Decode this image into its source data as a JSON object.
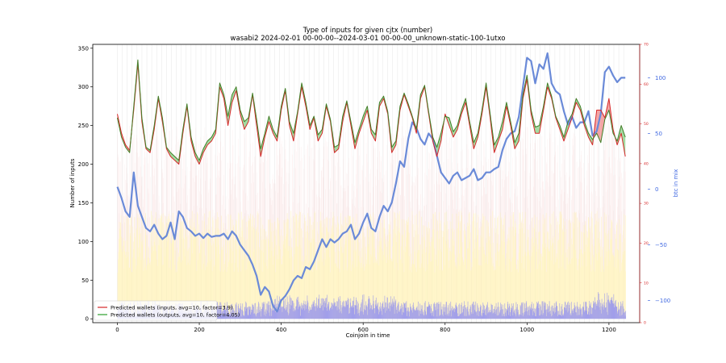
{
  "chart_data": {
    "type": "line",
    "title": "Type of inputs for given cjtx (number)",
    "subtitle": "wasabi2 2024-02-01 00-00-00--2024-03-01 00-00-00_unknown-static-100-1utxo",
    "xlabel": "Coinjoin in time",
    "ylabel": "Number of inputs",
    "y2label": "btc in mix",
    "xlim": [
      -60,
      1275
    ],
    "ylim": [
      -5,
      355
    ],
    "y3lim": [
      0,
      70
    ],
    "y2lim": [
      -120,
      130
    ],
    "x_ticks": [
      "0",
      "200",
      "400",
      "600",
      "800",
      "1000",
      "1200"
    ],
    "y_ticks": [
      "0",
      "50",
      "100",
      "150",
      "200",
      "250",
      "300",
      "350"
    ],
    "y3_ticks": [
      "0",
      "10",
      "20",
      "30",
      "40",
      "50",
      "60",
      "70"
    ],
    "y2_ticks": [
      "−100",
      "−50",
      "0",
      "50",
      "100"
    ],
    "legend": [
      {
        "label": "Predicted wallets (inputs, avg=10, factor=3.9)",
        "color": "#d62728"
      },
      {
        "label": "Predicted wallets (outputs, avg=10, factor=4.05)",
        "color": "#2ca02c"
      }
    ],
    "series": [
      {
        "name": "Predicted wallets (inputs, avg=10, factor=3.9)",
        "color": "#d62728",
        "x": [
          0,
          10,
          20,
          30,
          40,
          50,
          60,
          70,
          80,
          90,
          100,
          110,
          120,
          130,
          140,
          150,
          160,
          170,
          180,
          190,
          200,
          210,
          220,
          230,
          240,
          250,
          260,
          270,
          280,
          290,
          300,
          310,
          320,
          330,
          340,
          350,
          360,
          370,
          380,
          390,
          400,
          410,
          420,
          430,
          440,
          450,
          460,
          470,
          480,
          490,
          500,
          510,
          520,
          530,
          540,
          550,
          560,
          570,
          580,
          590,
          600,
          610,
          620,
          630,
          640,
          650,
          660,
          670,
          680,
          690,
          700,
          710,
          720,
          730,
          740,
          750,
          760,
          770,
          780,
          790,
          800,
          810,
          820,
          830,
          840,
          850,
          860,
          870,
          880,
          890,
          900,
          910,
          920,
          930,
          940,
          950,
          960,
          970,
          980,
          990,
          1000,
          1010,
          1020,
          1030,
          1040,
          1050,
          1060,
          1070,
          1080,
          1090,
          1100,
          1110,
          1120,
          1130,
          1140,
          1150,
          1160,
          1170,
          1180,
          1190,
          1200,
          1210,
          1220,
          1230,
          1240
        ],
        "values": [
          265,
          240,
          225,
          218,
          270,
          330,
          255,
          220,
          215,
          245,
          285,
          255,
          220,
          210,
          205,
          200,
          240,
          275,
          230,
          210,
          200,
          215,
          225,
          230,
          240,
          300,
          285,
          250,
          280,
          295,
          265,
          245,
          255,
          290,
          250,
          210,
          235,
          255,
          240,
          230,
          270,
          295,
          250,
          230,
          265,
          300,
          275,
          245,
          260,
          230,
          240,
          275,
          255,
          215,
          220,
          255,
          280,
          250,
          220,
          240,
          255,
          270,
          240,
          230,
          275,
          285,
          265,
          215,
          225,
          270,
          290,
          275,
          260,
          240,
          285,
          300,
          265,
          230,
          210,
          230,
          265,
          250,
          235,
          245,
          265,
          280,
          250,
          220,
          235,
          265,
          300,
          260,
          215,
          230,
          245,
          275,
          250,
          220,
          230,
          285,
          310,
          265,
          240,
          240,
          270,
          300,
          285,
          260,
          245,
          230,
          245,
          260,
          280,
          270,
          250,
          235,
          225,
          270,
          270,
          260,
          285,
          245,
          225,
          240,
          210
        ]
      },
      {
        "name": "Predicted wallets (outputs, avg=10, factor=4.05)",
        "color": "#2ca02c",
        "x": [
          0,
          10,
          20,
          30,
          40,
          50,
          60,
          70,
          80,
          90,
          100,
          110,
          120,
          130,
          140,
          150,
          160,
          170,
          180,
          190,
          200,
          210,
          220,
          230,
          240,
          250,
          260,
          270,
          280,
          290,
          300,
          310,
          320,
          330,
          340,
          350,
          360,
          370,
          380,
          390,
          400,
          410,
          420,
          430,
          440,
          450,
          460,
          470,
          480,
          490,
          500,
          510,
          520,
          530,
          540,
          550,
          560,
          570,
          580,
          590,
          600,
          610,
          620,
          630,
          640,
          650,
          660,
          670,
          680,
          690,
          700,
          710,
          720,
          730,
          740,
          750,
          760,
          770,
          780,
          790,
          800,
          810,
          820,
          830,
          840,
          850,
          860,
          870,
          880,
          890,
          900,
          910,
          920,
          930,
          940,
          950,
          960,
          970,
          980,
          990,
          1000,
          1010,
          1020,
          1030,
          1040,
          1050,
          1060,
          1070,
          1080,
          1090,
          1100,
          1110,
          1120,
          1130,
          1140,
          1150,
          1160,
          1170,
          1180,
          1190,
          1200,
          1210,
          1220,
          1230,
          1240
        ],
        "values": [
          260,
          235,
          222,
          215,
          275,
          335,
          260,
          222,
          218,
          250,
          288,
          260,
          222,
          215,
          210,
          205,
          245,
          278,
          235,
          215,
          205,
          220,
          230,
          235,
          245,
          305,
          290,
          262,
          290,
          300,
          270,
          255,
          260,
          292,
          258,
          220,
          240,
          262,
          245,
          235,
          275,
          298,
          255,
          240,
          268,
          305,
          280,
          250,
          262,
          238,
          245,
          278,
          258,
          222,
          225,
          262,
          282,
          255,
          228,
          245,
          262,
          275,
          245,
          238,
          280,
          288,
          268,
          222,
          230,
          275,
          292,
          278,
          262,
          245,
          290,
          302,
          268,
          235,
          222,
          240,
          262,
          260,
          242,
          250,
          270,
          285,
          255,
          228,
          240,
          270,
          305,
          265,
          225,
          235,
          255,
          280,
          255,
          228,
          240,
          290,
          315,
          270,
          248,
          250,
          275,
          305,
          288,
          262,
          250,
          235,
          255,
          265,
          285,
          275,
          255,
          240,
          232,
          240,
          228,
          258,
          270,
          240,
          230,
          250,
          235
        ]
      },
      {
        "name": "btc in mix",
        "color": "#6a8ad8",
        "axis": "y2",
        "x": [
          0,
          10,
          20,
          30,
          40,
          50,
          60,
          70,
          80,
          90,
          100,
          110,
          120,
          130,
          140,
          150,
          160,
          170,
          180,
          190,
          200,
          210,
          220,
          230,
          240,
          250,
          260,
          270,
          280,
          290,
          300,
          310,
          320,
          330,
          340,
          350,
          360,
          370,
          380,
          390,
          400,
          410,
          420,
          430,
          440,
          450,
          460,
          470,
          480,
          490,
          500,
          510,
          520,
          530,
          540,
          550,
          560,
          570,
          580,
          590,
          600,
          610,
          620,
          630,
          640,
          650,
          660,
          670,
          680,
          690,
          700,
          710,
          720,
          730,
          740,
          750,
          760,
          770,
          780,
          790,
          800,
          810,
          820,
          830,
          840,
          850,
          860,
          870,
          880,
          890,
          900,
          910,
          920,
          930,
          940,
          950,
          960,
          970,
          980,
          990,
          1000,
          1010,
          1020,
          1030,
          1040,
          1050,
          1060,
          1070,
          1080,
          1090,
          1100,
          1110,
          1120,
          1130,
          1140,
          1150,
          1160,
          1170,
          1180,
          1190,
          1200,
          1210,
          1220,
          1230,
          1240
        ],
        "values": [
          2,
          -8,
          -20,
          -25,
          15,
          -15,
          -25,
          -35,
          -38,
          -32,
          -40,
          -45,
          -42,
          -30,
          -45,
          -20,
          -25,
          -35,
          -38,
          -42,
          -40,
          -44,
          -40,
          -43,
          -42,
          -42,
          -40,
          -45,
          -38,
          -42,
          -50,
          -55,
          -60,
          -68,
          -78,
          -95,
          -88,
          -92,
          -105,
          -110,
          -100,
          -96,
          -90,
          -82,
          -78,
          -80,
          -70,
          -72,
          -65,
          -55,
          -45,
          -52,
          -45,
          -48,
          -45,
          -40,
          -38,
          -32,
          -45,
          -40,
          -30,
          -22,
          -35,
          -38,
          -25,
          -15,
          -20,
          -12,
          5,
          25,
          20,
          45,
          60,
          55,
          45,
          40,
          50,
          45,
          30,
          15,
          10,
          5,
          12,
          15,
          8,
          10,
          12,
          18,
          8,
          10,
          15,
          15,
          18,
          20,
          35,
          45,
          50,
          52,
          65,
          92,
          118,
          115,
          95,
          112,
          108,
          122,
          95,
          88,
          85,
          70,
          58,
          65,
          55,
          60,
          60,
          70,
          48,
          52,
          68,
          105,
          110,
          102,
          96,
          100,
          100
        ]
      }
    ]
  }
}
